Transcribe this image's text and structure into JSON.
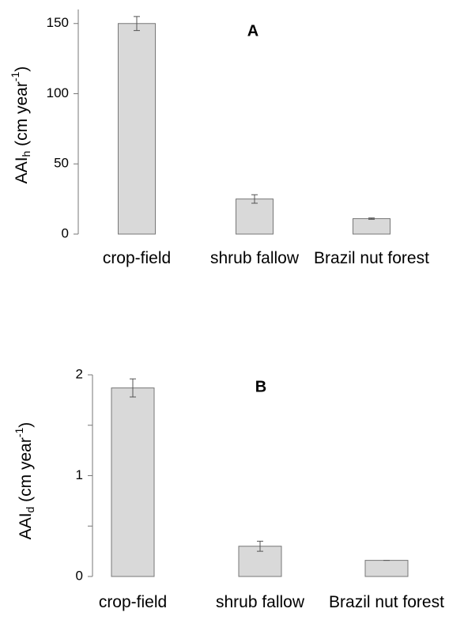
{
  "chart_data": [
    {
      "type": "bar",
      "title": "A",
      "ylabel": {
        "base": "AAI",
        "sub": "h",
        "mid": " (cm year",
        "sup": "-1",
        "end": ")"
      },
      "categories": [
        "crop-field",
        "shrub fallow",
        "Brazil nut forest"
      ],
      "values": [
        150,
        25,
        11
      ],
      "errors": [
        5,
        3,
        0.5
      ],
      "color": "#d9d9d9",
      "ylim": [
        0,
        160
      ],
      "yticks": [
        0,
        50,
        100,
        150
      ]
    },
    {
      "type": "bar",
      "title": "B",
      "ylabel": {
        "base": "AAI",
        "sub": "d",
        "mid": " (cm year",
        "sup": "-1",
        "end": ")"
      },
      "categories": [
        "crop-field",
        "shrub fallow",
        "Brazil nut forest"
      ],
      "values": [
        1.87,
        0.3,
        0.16
      ],
      "errors": [
        0.09,
        0.05,
        0
      ],
      "color": "#d9d9d9",
      "ylim": [
        0,
        2
      ],
      "yticks": [
        0,
        1,
        2
      ],
      "yminorticks": [
        0.5,
        1.5
      ]
    }
  ]
}
